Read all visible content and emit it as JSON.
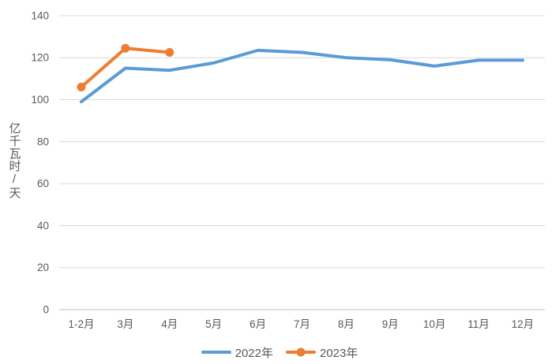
{
  "chart_data": {
    "type": "line",
    "title": "",
    "xlabel": "",
    "ylabel": "亿千瓦时/天",
    "categories": [
      "1-2月",
      "3月",
      "4月",
      "5月",
      "6月",
      "7月",
      "8月",
      "9月",
      "10月",
      "11月",
      "12月"
    ],
    "series": [
      {
        "name": "2022年",
        "color": "#5B9BD5",
        "marker": false,
        "values": [
          99,
          115,
          114,
          117.5,
          123.5,
          122.5,
          120,
          119,
          116,
          118.8,
          118.8
        ]
      },
      {
        "name": "2023年",
        "color": "#ED7D31",
        "marker": true,
        "values": [
          106,
          124.5,
          122.5,
          null,
          null,
          null,
          null,
          null,
          null,
          null,
          null
        ]
      }
    ],
    "ylim": [
      0,
      140
    ],
    "yticks": [
      0,
      20,
      40,
      60,
      80,
      100,
      120,
      140
    ],
    "grid": true,
    "legend_position": "bottom",
    "grid_color": "#D9D9D9",
    "axis_color": "#BFBFBF",
    "text_color": "#595959"
  }
}
